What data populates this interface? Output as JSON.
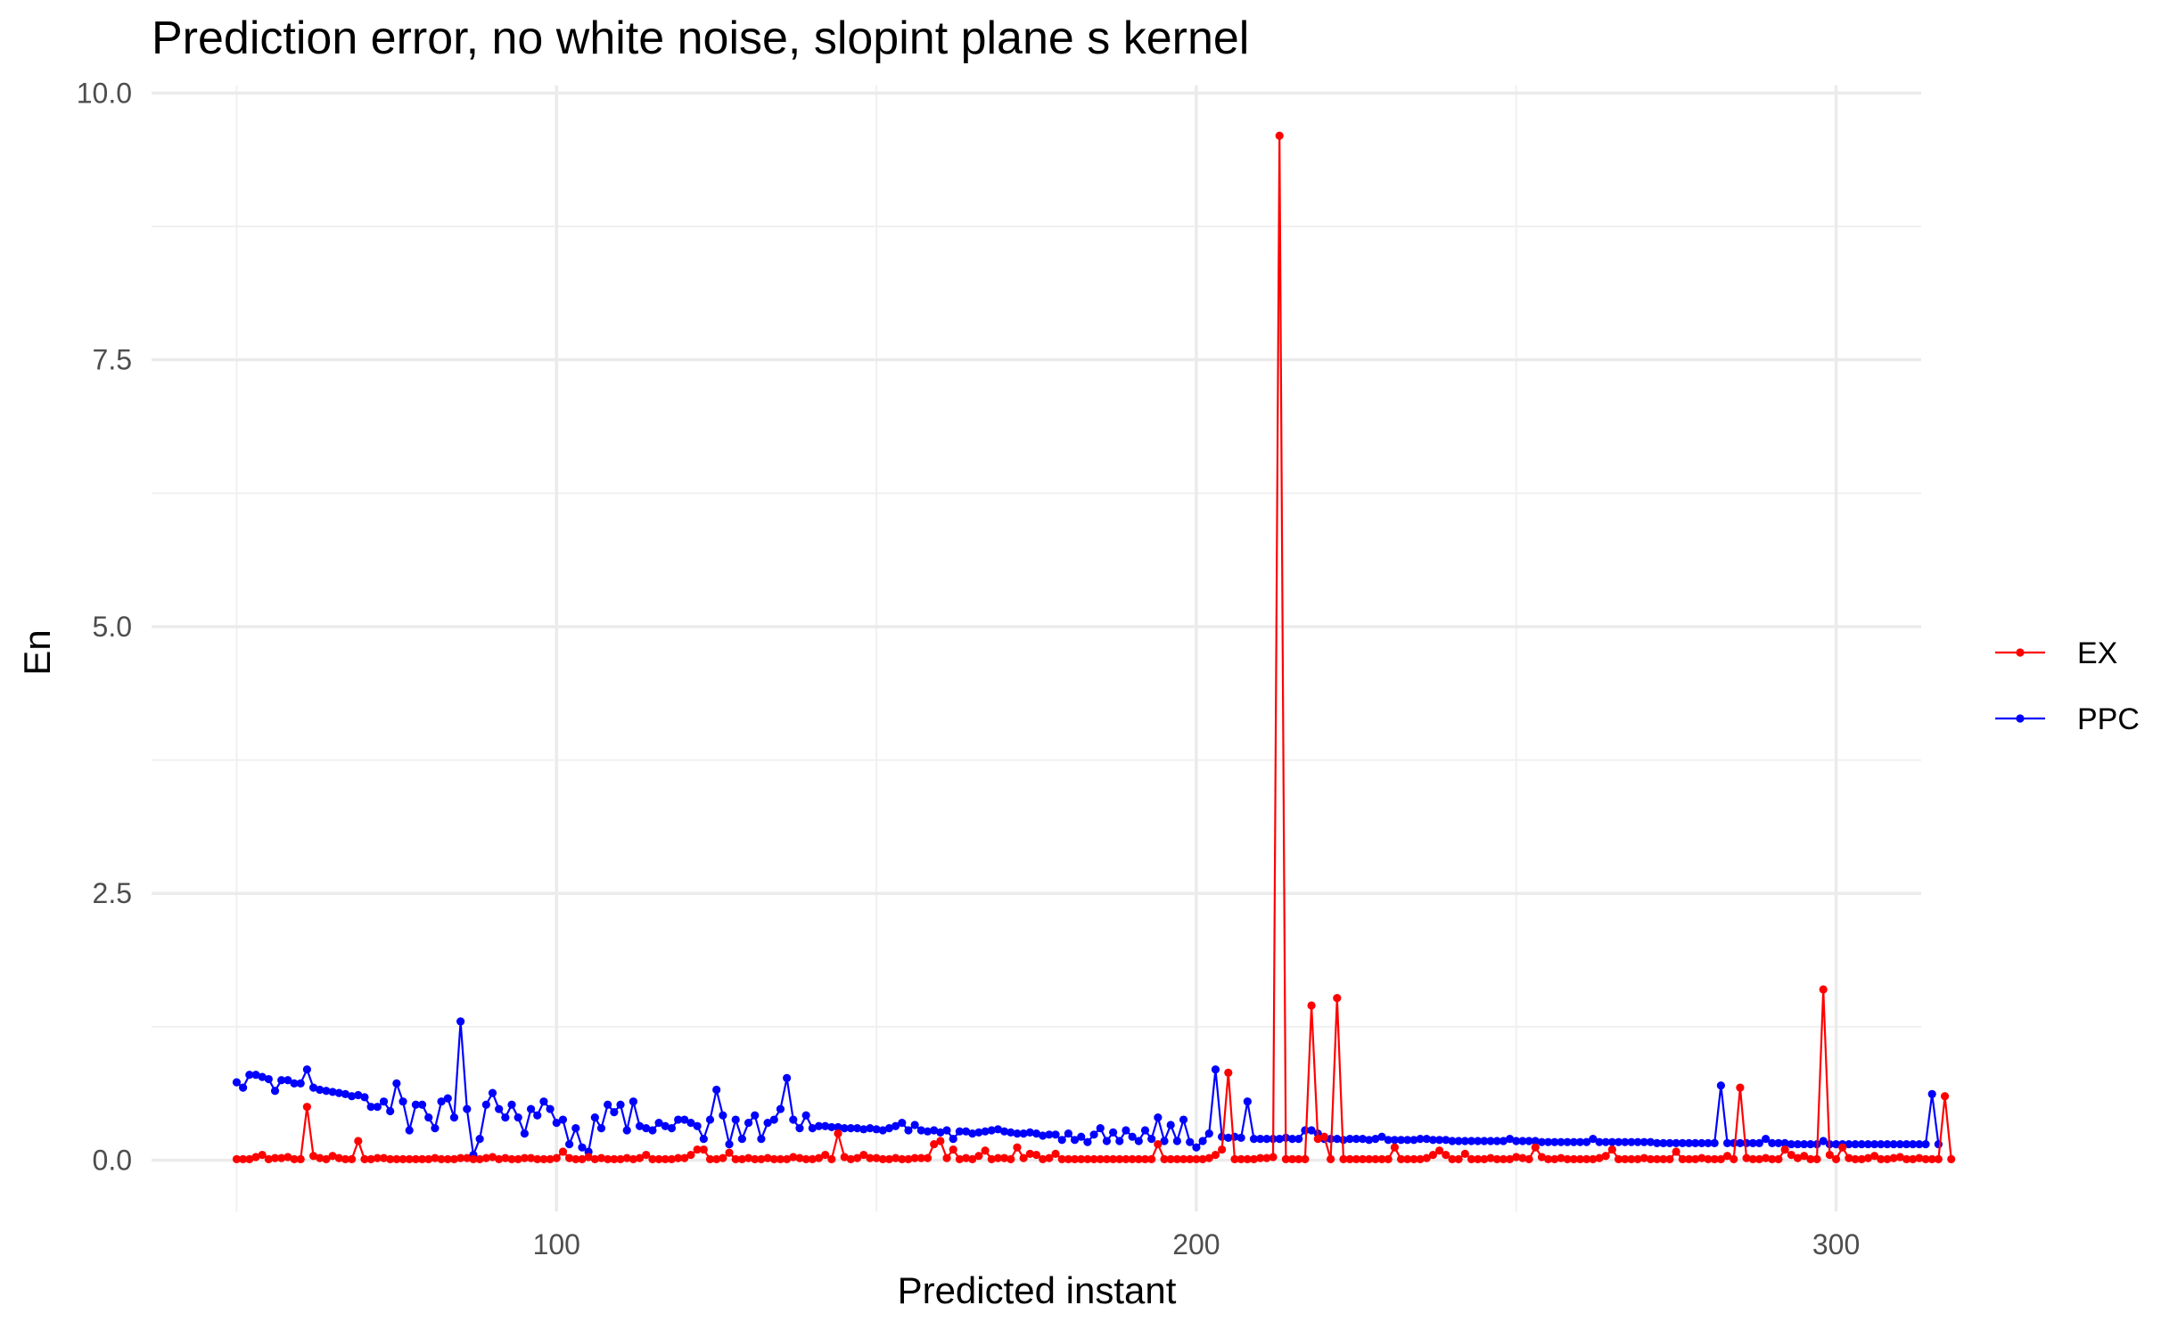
{
  "chart_data": {
    "type": "line",
    "title": "Prediction error, no white noise, slopint plane s kernel",
    "xlabel": "Predicted instant",
    "ylabel": "En",
    "xlim": [
      36.7,
      313.3
    ],
    "ylim": [
      -0.48,
      10.07
    ],
    "x_ticks": [
      100,
      200,
      300
    ],
    "y_ticks": [
      0.0,
      2.5,
      5.0,
      7.5,
      10.0
    ],
    "x_tick_labels": [
      "100",
      "200",
      "300"
    ],
    "y_tick_labels": [
      "0.0",
      "2.5",
      "5.0",
      "7.5",
      "10.0"
    ],
    "grid": true,
    "legend_position": "right",
    "x_start": 50,
    "series": [
      {
        "name": "EX",
        "color": "#ff0000",
        "values": [
          0.01,
          0.01,
          0.01,
          0.03,
          0.05,
          0.01,
          0.02,
          0.02,
          0.03,
          0.01,
          0.01,
          0.5,
          0.04,
          0.02,
          0.01,
          0.04,
          0.02,
          0.01,
          0.01,
          0.18,
          0.01,
          0.01,
          0.02,
          0.02,
          0.01,
          0.01,
          0.01,
          0.01,
          0.01,
          0.01,
          0.01,
          0.02,
          0.01,
          0.01,
          0.01,
          0.02,
          0.02,
          0.01,
          0.01,
          0.02,
          0.03,
          0.01,
          0.02,
          0.01,
          0.01,
          0.02,
          0.02,
          0.01,
          0.01,
          0.01,
          0.02,
          0.08,
          0.02,
          0.01,
          0.01,
          0.03,
          0.01,
          0.02,
          0.01,
          0.01,
          0.01,
          0.02,
          0.01,
          0.02,
          0.05,
          0.01,
          0.01,
          0.01,
          0.01,
          0.02,
          0.02,
          0.05,
          0.1,
          0.1,
          0.01,
          0.01,
          0.02,
          0.07,
          0.01,
          0.01,
          0.02,
          0.01,
          0.01,
          0.02,
          0.01,
          0.01,
          0.01,
          0.03,
          0.02,
          0.01,
          0.01,
          0.02,
          0.05,
          0.01,
          0.25,
          0.03,
          0.01,
          0.02,
          0.05,
          0.02,
          0.02,
          0.01,
          0.01,
          0.02,
          0.01,
          0.01,
          0.02,
          0.02,
          0.02,
          0.15,
          0.18,
          0.02,
          0.1,
          0.01,
          0.02,
          0.01,
          0.04,
          0.09,
          0.01,
          0.02,
          0.02,
          0.01,
          0.12,
          0.02,
          0.06,
          0.05,
          0.01,
          0.02,
          0.06,
          0.01,
          0.01,
          0.01,
          0.01,
          0.01,
          0.01,
          0.01,
          0.01,
          0.01,
          0.01,
          0.01,
          0.01,
          0.01,
          0.01,
          0.01,
          0.15,
          0.01,
          0.01,
          0.01,
          0.01,
          0.01,
          0.01,
          0.01,
          0.02,
          0.05,
          0.1,
          0.82,
          0.01,
          0.01,
          0.01,
          0.01,
          0.02,
          0.02,
          0.03,
          9.6,
          0.01,
          0.01,
          0.01,
          0.01,
          1.45,
          0.2,
          0.22,
          0.01,
          1.52,
          0.01,
          0.01,
          0.01,
          0.01,
          0.01,
          0.01,
          0.01,
          0.01,
          0.12,
          0.01,
          0.01,
          0.01,
          0.01,
          0.02,
          0.05,
          0.09,
          0.05,
          0.01,
          0.01,
          0.06,
          0.01,
          0.01,
          0.01,
          0.02,
          0.01,
          0.01,
          0.01,
          0.03,
          0.02,
          0.01,
          0.12,
          0.03,
          0.01,
          0.01,
          0.02,
          0.01,
          0.01,
          0.01,
          0.01,
          0.01,
          0.02,
          0.04,
          0.1,
          0.01,
          0.01,
          0.01,
          0.01,
          0.02,
          0.01,
          0.01,
          0.01,
          0.01,
          0.08,
          0.01,
          0.01,
          0.01,
          0.02,
          0.01,
          0.01,
          0.01,
          0.04,
          0.01,
          0.68,
          0.02,
          0.01,
          0.01,
          0.02,
          0.01,
          0.01,
          0.1,
          0.05,
          0.02,
          0.04,
          0.01,
          0.01,
          1.6,
          0.05,
          0.01,
          0.12,
          0.02,
          0.01,
          0.01,
          0.02,
          0.04,
          0.01,
          0.01,
          0.02,
          0.03,
          0.01,
          0.01,
          0.02,
          0.01,
          0.01,
          0.01,
          0.6,
          0.01
        ]
      },
      {
        "name": "PPC",
        "color": "#0000ff",
        "values": [
          0.73,
          0.68,
          0.8,
          0.8,
          0.78,
          0.76,
          0.65,
          0.75,
          0.75,
          0.72,
          0.72,
          0.85,
          0.68,
          0.66,
          0.65,
          0.64,
          0.63,
          0.62,
          0.6,
          0.61,
          0.59,
          0.5,
          0.5,
          0.55,
          0.46,
          0.72,
          0.55,
          0.28,
          0.52,
          0.52,
          0.4,
          0.3,
          0.55,
          0.58,
          0.4,
          1.3,
          0.48,
          0.05,
          0.2,
          0.52,
          0.63,
          0.48,
          0.4,
          0.52,
          0.4,
          0.25,
          0.48,
          0.42,
          0.55,
          0.48,
          0.35,
          0.38,
          0.15,
          0.3,
          0.12,
          0.08,
          0.4,
          0.3,
          0.52,
          0.45,
          0.52,
          0.28,
          0.55,
          0.32,
          0.3,
          0.28,
          0.35,
          0.32,
          0.3,
          0.38,
          0.38,
          0.35,
          0.32,
          0.2,
          0.38,
          0.66,
          0.42,
          0.15,
          0.38,
          0.2,
          0.35,
          0.42,
          0.2,
          0.35,
          0.38,
          0.48,
          0.77,
          0.38,
          0.3,
          0.42,
          0.3,
          0.32,
          0.32,
          0.31,
          0.31,
          0.3,
          0.3,
          0.3,
          0.29,
          0.3,
          0.29,
          0.28,
          0.3,
          0.32,
          0.35,
          0.28,
          0.33,
          0.28,
          0.27,
          0.28,
          0.26,
          0.28,
          0.2,
          0.27,
          0.27,
          0.25,
          0.26,
          0.27,
          0.28,
          0.29,
          0.27,
          0.26,
          0.25,
          0.25,
          0.26,
          0.25,
          0.23,
          0.24,
          0.24,
          0.19,
          0.25,
          0.19,
          0.22,
          0.17,
          0.24,
          0.3,
          0.18,
          0.26,
          0.18,
          0.28,
          0.22,
          0.18,
          0.28,
          0.2,
          0.4,
          0.18,
          0.33,
          0.18,
          0.38,
          0.17,
          0.12,
          0.18,
          0.25,
          0.85,
          0.22,
          0.21,
          0.22,
          0.21,
          0.55,
          0.2,
          0.2,
          0.2,
          0.2,
          0.2,
          0.21,
          0.2,
          0.2,
          0.28,
          0.28,
          0.25,
          0.2,
          0.2,
          0.2,
          0.19,
          0.2,
          0.2,
          0.2,
          0.19,
          0.2,
          0.22,
          0.19,
          0.19,
          0.19,
          0.19,
          0.19,
          0.2,
          0.2,
          0.19,
          0.19,
          0.19,
          0.18,
          0.18,
          0.18,
          0.18,
          0.18,
          0.18,
          0.18,
          0.18,
          0.18,
          0.2,
          0.18,
          0.18,
          0.18,
          0.18,
          0.17,
          0.17,
          0.17,
          0.17,
          0.17,
          0.17,
          0.17,
          0.17,
          0.2,
          0.17,
          0.17,
          0.17,
          0.17,
          0.17,
          0.17,
          0.17,
          0.17,
          0.17,
          0.16,
          0.16,
          0.16,
          0.16,
          0.16,
          0.16,
          0.16,
          0.16,
          0.16,
          0.16,
          0.7,
          0.16,
          0.16,
          0.16,
          0.16,
          0.16,
          0.16,
          0.2,
          0.16,
          0.16,
          0.16,
          0.15,
          0.15,
          0.15,
          0.15,
          0.15,
          0.18,
          0.15,
          0.15,
          0.15,
          0.15,
          0.15,
          0.15,
          0.15,
          0.15,
          0.15,
          0.15,
          0.15,
          0.15,
          0.15,
          0.15,
          0.15,
          0.15,
          0.62,
          0.15
        ]
      }
    ]
  }
}
